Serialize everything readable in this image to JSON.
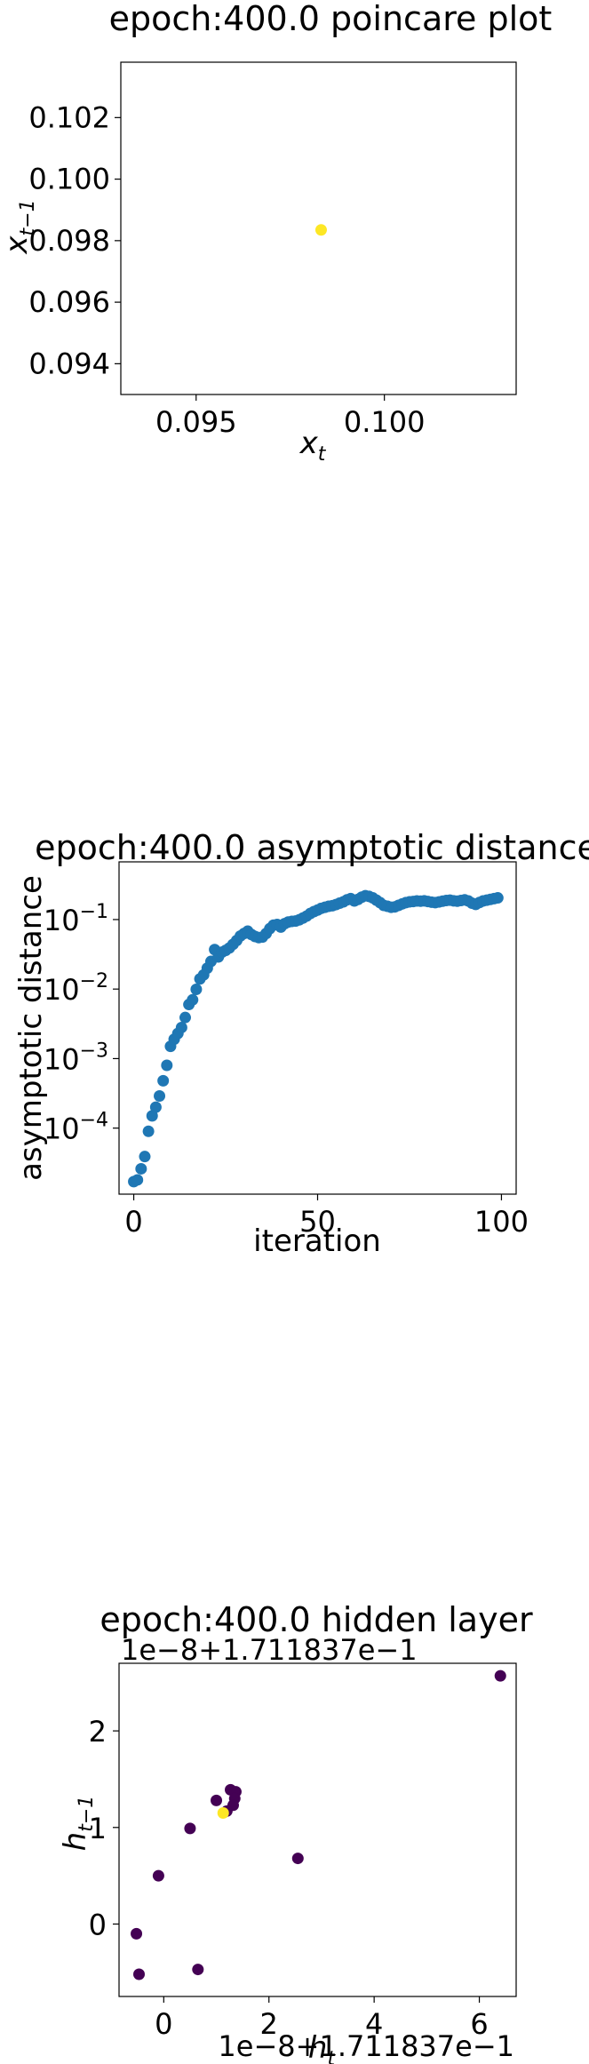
{
  "chart_data": [
    {
      "type": "scatter",
      "title": "epoch:400.0 poincare plot",
      "xlabel": "x",
      "xlabel_sub": "t",
      "ylabel": "x",
      "ylabel_sub": "t−1",
      "xlim": [
        0.093,
        0.1035
      ],
      "ylim": [
        0.093,
        0.1038
      ],
      "xticks": [
        {
          "value": 0.095,
          "label": "0.095"
        },
        {
          "value": 0.1,
          "label": "0.100"
        }
      ],
      "yticks": [
        {
          "value": 0.094,
          "label": "0.094"
        },
        {
          "value": 0.096,
          "label": "0.096"
        },
        {
          "value": 0.098,
          "label": "0.098"
        },
        {
          "value": 0.1,
          "label": "0.100"
        },
        {
          "value": 0.102,
          "label": "0.102"
        }
      ],
      "points": [
        {
          "x": 0.09832,
          "y": 0.09835,
          "color": "#fde725"
        }
      ]
    },
    {
      "type": "scatter",
      "title": "epoch:400.0 asymptotic distance",
      "xlabel": "iteration",
      "ylabel": "asymptotic distance",
      "yscale": "log",
      "xlim": [
        -4,
        104
      ],
      "ylim_log10": [
        -4.95,
        -0.17
      ],
      "xticks": [
        {
          "value": 0,
          "label": "0"
        },
        {
          "value": 50,
          "label": "50"
        },
        {
          "value": 100,
          "label": "100"
        }
      ],
      "yticks": [
        {
          "exp": -4,
          "base": "10",
          "sup": "−4"
        },
        {
          "exp": -3,
          "base": "10",
          "sup": "−3"
        },
        {
          "exp": -2,
          "base": "10",
          "sup": "−2"
        },
        {
          "exp": -1,
          "base": "10",
          "sup": "−1"
        }
      ],
      "color": "#1f77b4",
      "x": [
        0,
        1,
        2,
        3,
        4,
        5,
        6,
        7,
        8,
        9,
        10,
        11,
        12,
        13,
        14,
        15,
        16,
        17,
        18,
        19,
        20,
        21,
        22,
        23,
        24,
        25,
        26,
        27,
        28,
        29,
        30,
        31,
        32,
        33,
        34,
        35,
        36,
        37,
        38,
        39,
        40,
        41,
        42,
        43,
        44,
        45,
        46,
        47,
        48,
        49,
        50,
        51,
        52,
        53,
        54,
        55,
        56,
        57,
        58,
        59,
        60,
        61,
        62,
        63,
        64,
        65,
        66,
        67,
        68,
        69,
        70,
        71,
        72,
        73,
        74,
        75,
        76,
        77,
        78,
        79,
        80,
        81,
        82,
        83,
        84,
        85,
        86,
        87,
        88,
        89,
        90,
        91,
        92,
        93,
        94,
        95,
        96,
        97,
        98,
        99
      ],
      "y": [
        1.7e-05,
        1.8e-05,
        2.6e-05,
        3.9e-05,
        9e-05,
        0.00015,
        0.0002,
        0.00029,
        0.00048,
        0.0008,
        0.0015,
        0.0019,
        0.0023,
        0.0028,
        0.0039,
        0.006,
        0.007,
        0.0099,
        0.014,
        0.016,
        0.02,
        0.025,
        0.037,
        0.029,
        0.034,
        0.036,
        0.039,
        0.044,
        0.05,
        0.058,
        0.063,
        0.068,
        0.061,
        0.057,
        0.055,
        0.056,
        0.063,
        0.074,
        0.083,
        0.085,
        0.078,
        0.087,
        0.092,
        0.094,
        0.095,
        0.099,
        0.105,
        0.112,
        0.122,
        0.13,
        0.137,
        0.145,
        0.15,
        0.155,
        0.158,
        0.164,
        0.172,
        0.18,
        0.192,
        0.2,
        0.185,
        0.195,
        0.21,
        0.22,
        0.215,
        0.205,
        0.19,
        0.175,
        0.16,
        0.155,
        0.15,
        0.152,
        0.16,
        0.168,
        0.175,
        0.18,
        0.182,
        0.185,
        0.184,
        0.186,
        0.182,
        0.178,
        0.175,
        0.179,
        0.184,
        0.188,
        0.19,
        0.186,
        0.184,
        0.188,
        0.192,
        0.185,
        0.172,
        0.165,
        0.176,
        0.185,
        0.19,
        0.195,
        0.2,
        0.205
      ]
    },
    {
      "type": "scatter",
      "title": "epoch:400.0 hidden layer",
      "x_offset_label": "1e−8+1.711837e−1",
      "y_offset_label": "1e−8+1.711837e−1",
      "xlabel": "h",
      "xlabel_sub": "t",
      "ylabel": "h",
      "ylabel_sub": "t−1",
      "xlim": [
        -0.85,
        6.7
      ],
      "ylim": [
        -0.75,
        2.7
      ],
      "xticks": [
        {
          "value": 0,
          "label": "0"
        },
        {
          "value": 2,
          "label": "2"
        },
        {
          "value": 4,
          "label": "4"
        },
        {
          "value": 6,
          "label": "6"
        }
      ],
      "yticks": [
        {
          "value": 0,
          "label": "0"
        },
        {
          "value": 1,
          "label": "1"
        },
        {
          "value": 2,
          "label": "2"
        }
      ],
      "points": [
        {
          "x": 6.4,
          "y": 2.57,
          "color": "#440154"
        },
        {
          "x": 1.0,
          "y": 1.28,
          "color": "#440154"
        },
        {
          "x": 1.27,
          "y": 1.39,
          "color": "#440154"
        },
        {
          "x": 1.37,
          "y": 1.37,
          "color": "#440154"
        },
        {
          "x": 1.35,
          "y": 1.3,
          "color": "#440154"
        },
        {
          "x": 1.32,
          "y": 1.23,
          "color": "#440154"
        },
        {
          "x": 1.2,
          "y": 1.17,
          "color": "#440154"
        },
        {
          "x": 0.5,
          "y": 0.99,
          "color": "#440154"
        },
        {
          "x": 2.55,
          "y": 0.68,
          "color": "#440154"
        },
        {
          "x": -0.1,
          "y": 0.5,
          "color": "#440154"
        },
        {
          "x": -0.52,
          "y": -0.1,
          "color": "#440154"
        },
        {
          "x": -0.47,
          "y": -0.52,
          "color": "#440154"
        },
        {
          "x": 0.65,
          "y": -0.47,
          "color": "#440154"
        },
        {
          "x": 1.13,
          "y": 1.15,
          "color": "#fde725"
        }
      ]
    }
  ]
}
